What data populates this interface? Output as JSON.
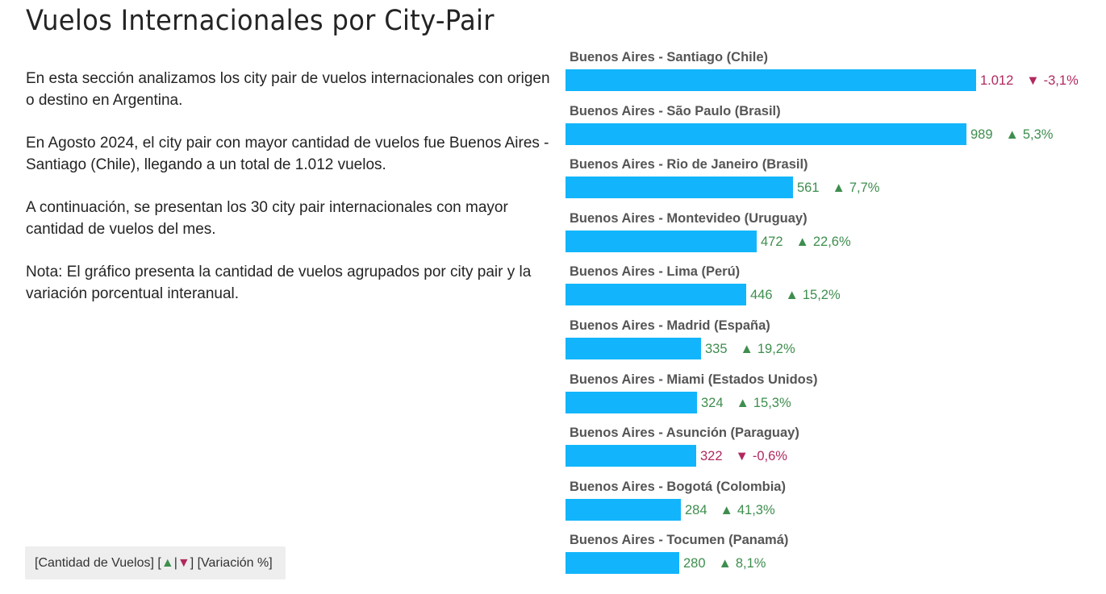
{
  "title": "Vuelos Internacionales por City-Pair",
  "description": [
    "En esta sección analizamos los city pair de vuelos internacionales con origen o destino en Argentina.",
    "En Agosto 2024, el city pair con mayor cantidad de vuelos fue Buenos Aires - Santiago (Chile), llegando a un total de 1.012 vuelos.",
    "A continuación, se presentan los 30 city pair internacionales con mayor cantidad de vuelos del mes.",
    "Nota: El gráfico presenta la cantidad de vuelos agrupados por city pair y la variación porcentual interanual."
  ],
  "legend": {
    "prefix": "[Cantidad de Vuelos] [",
    "up_symbol": "▲",
    "separator": "|",
    "down_symbol": "▼",
    "suffix": "] [Variación %]"
  },
  "colors": {
    "bar": "#12b5fb",
    "positive": "#3e8e4e",
    "negative": "#b0295f"
  },
  "chart_data": {
    "type": "bar",
    "orientation": "horizontal",
    "title": "",
    "xlabel": "",
    "ylabel": "",
    "xlim": [
      0,
      1012
    ],
    "grid": false,
    "categories": [
      "Buenos Aires - Santiago (Chile)",
      "Buenos Aires - São Paulo (Brasil)",
      "Buenos Aires - Rio de Janeiro (Brasil)",
      "Buenos Aires - Montevideo (Uruguay)",
      "Buenos Aires - Lima (Perú)",
      "Buenos Aires - Madrid (España)",
      "Buenos Aires - Miami (Estados Unidos)",
      "Buenos Aires - Asunción (Paraguay)",
      "Buenos Aires - Bogotá (Colombia)",
      "Buenos Aires - Tocumen (Panamá)"
    ],
    "values": [
      1012,
      989,
      561,
      472,
      446,
      335,
      324,
      322,
      284,
      280
    ],
    "value_labels": [
      "1.012",
      "989",
      "561",
      "472",
      "446",
      "335",
      "324",
      "322",
      "284",
      "280"
    ],
    "variation": [
      -3.1,
      5.3,
      7.7,
      22.6,
      15.2,
      19.2,
      15.3,
      -0.6,
      41.3,
      8.1
    ],
    "variation_labels": [
      "-3,1%",
      "5,3%",
      "7,7%",
      "22,6%",
      "15,2%",
      "19,2%",
      "15,3%",
      "-0,6%",
      "41,3%",
      "8,1%"
    ]
  }
}
